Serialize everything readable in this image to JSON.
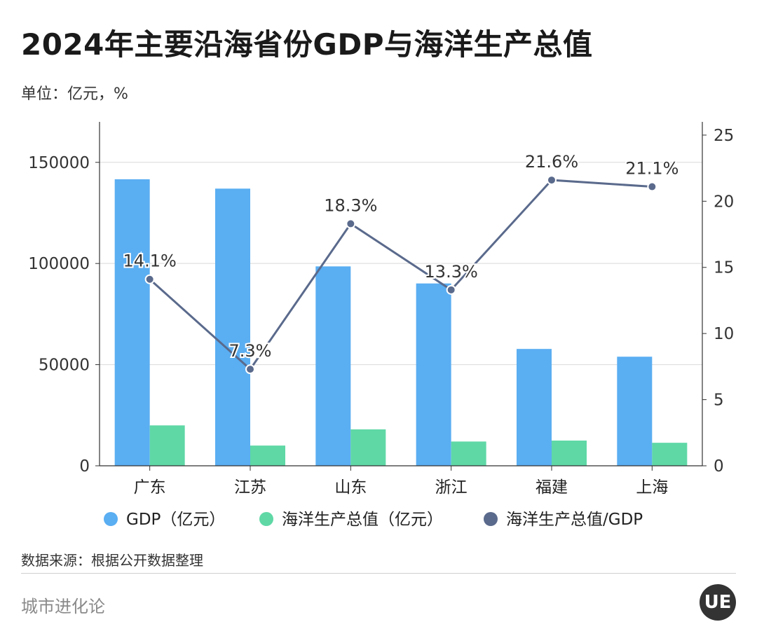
{
  "title": "2024年主要沿海省份GDP与海洋生产总值",
  "unit": "单位：亿元，%",
  "source": "数据来源：根据公开数据整理",
  "brand": "城市进化论",
  "logo_text": "UE",
  "colors": {
    "gdp": "#5aaef2",
    "ocean": "#5fd8a6",
    "ratio": "#5a6a8c",
    "grid": "#d9d9d9"
  },
  "chart_data": {
    "type": "bar",
    "categories": [
      "广东",
      "江苏",
      "山东",
      "浙江",
      "福建",
      "上海"
    ],
    "series": [
      {
        "name": "GDP（亿元）",
        "type": "bar",
        "axis": "left",
        "values": [
          141634,
          137008,
          98566,
          90131,
          57762,
          53927
        ]
      },
      {
        "name": "海洋生产总值（亿元）",
        "type": "bar",
        "axis": "left",
        "values": [
          19970,
          10002,
          18000,
          12000,
          12470,
          11380
        ]
      },
      {
        "name": "海洋生产总值/GDP",
        "type": "line",
        "axis": "right",
        "values": [
          14.1,
          7.3,
          18.3,
          13.3,
          21.6,
          21.1
        ],
        "labels": [
          "14.1%",
          "7.3%",
          "18.3%",
          "13.3%",
          "21.6%",
          "21.1%"
        ]
      }
    ],
    "left_axis": {
      "ylim": [
        0,
        170000
      ],
      "ticks": [
        "0",
        "50000",
        "100000",
        "150000"
      ],
      "tick_values": [
        0,
        50000,
        100000,
        150000
      ]
    },
    "right_axis": {
      "ylim": [
        0,
        26
      ],
      "ticks": [
        "0",
        "5",
        "10",
        "15",
        "20",
        "25"
      ],
      "tick_values": [
        0,
        5,
        10,
        15,
        20,
        25
      ]
    },
    "grid": true,
    "legend_position": "bottom"
  }
}
